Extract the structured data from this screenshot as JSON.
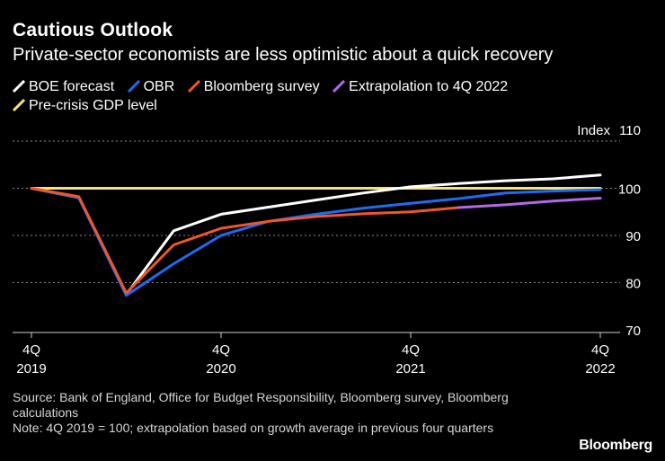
{
  "header": {
    "title": "Cautious Outlook",
    "subtitle": "Private-sector economists are less optimistic about a quick recovery"
  },
  "colors": {
    "boe": "#ffffff",
    "obr": "#1f6bf0",
    "bloomberg": "#f0562a",
    "extrapolation": "#b269e8",
    "precrisis": "#f6e27a",
    "grid": "#8a8a8a"
  },
  "chart_data": {
    "type": "line",
    "title": "Cautious Outlook",
    "subtitle": "Private-sector economists are less optimistic about a quick recovery",
    "ylabel": "Index",
    "ylim": [
      70,
      110
    ],
    "yticks": [
      70,
      80,
      90,
      100,
      110
    ],
    "ytick_labels": [
      "70",
      "80",
      "90",
      "100",
      "110"
    ],
    "xlim": [
      0,
      12
    ],
    "grid": true,
    "legend_position": "top-left",
    "x_ticks": [
      {
        "x": 0,
        "line1": "4Q",
        "line2": "2019"
      },
      {
        "x": 4,
        "line1": "4Q",
        "line2": "2020"
      },
      {
        "x": 8,
        "line1": "4Q",
        "line2": "2021"
      },
      {
        "x": 12,
        "line1": "4Q",
        "line2": "2022"
      }
    ],
    "series": [
      {
        "key": "precrisis",
        "name": "Pre-crisis GDP level",
        "x": [
          0,
          12
        ],
        "values": [
          100,
          100
        ]
      },
      {
        "key": "boe",
        "name": "BOE forecast",
        "x": [
          0,
          1,
          2,
          3,
          4,
          5,
          6,
          7,
          8,
          9,
          10,
          11,
          12
        ],
        "values": [
          100,
          98,
          77.5,
          91,
          94.5,
          96,
          97.5,
          99,
          100.3,
          101,
          101.6,
          102,
          102.8
        ]
      },
      {
        "key": "obr",
        "name": "OBR",
        "x": [
          0,
          1,
          2,
          3,
          4,
          5,
          6,
          7,
          8,
          9,
          10,
          11,
          12
        ],
        "values": [
          100,
          98,
          77.3,
          84,
          90,
          93,
          94.5,
          95.8,
          96.8,
          97.8,
          99,
          99.4,
          99.7
        ]
      },
      {
        "key": "bloomberg",
        "name": "Bloomberg survey",
        "x": [
          0,
          1,
          2,
          3,
          4,
          5,
          6,
          7,
          8,
          9
        ],
        "values": [
          100,
          98.2,
          77.8,
          88,
          91.5,
          93,
          94,
          94.6,
          95,
          95.9
        ]
      },
      {
        "key": "extrapolation",
        "name": "Extrapolation to 4Q 2022",
        "x": [
          9,
          10,
          11,
          12
        ],
        "values": [
          95.9,
          96.5,
          97.3,
          97.9
        ]
      }
    ]
  },
  "legend": [
    {
      "key": "boe",
      "label": "BOE forecast"
    },
    {
      "key": "obr",
      "label": "OBR"
    },
    {
      "key": "bloomberg",
      "label": "Bloomberg survey"
    },
    {
      "key": "extrapolation",
      "label": "Extrapolation to 4Q 2022"
    },
    {
      "key": "precrisis",
      "label": "Pre-crisis GDP level"
    }
  ],
  "footer": {
    "source": "Source: Bank of England, Office for Budget Responsibility, Bloomberg survey, Bloomberg calculations",
    "note": "Note: 4Q 2019 = 100; extrapolation based on growth average in previous four quarters"
  },
  "brand": "Bloomberg"
}
